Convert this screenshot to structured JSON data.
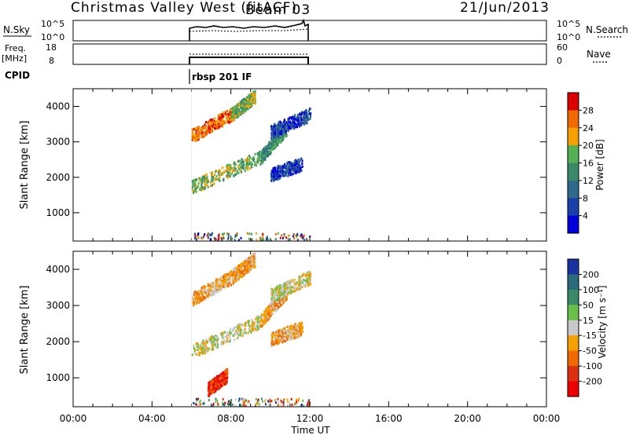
{
  "header": {
    "title": "Christmas Valley West (fitACF)",
    "beam": "Beam 03",
    "date": "21/Jun/2013"
  },
  "top_panels": {
    "nsky": {
      "label": "N.Sky",
      "ticks_left": [
        "10^5",
        "10^0"
      ],
      "ticks_right": [
        "10^5",
        "10^0"
      ],
      "right_label": "N.Search"
    },
    "freq": {
      "label_line1": "Freq.",
      "label_line2": "[MHz]",
      "ticks_left": [
        "18",
        "8"
      ],
      "ticks_right": [
        "60",
        "0"
      ],
      "right_label": "Nave"
    },
    "cpid": {
      "label": "CPID",
      "value": "rbsp 201 IF"
    }
  },
  "chart_data": [
    {
      "type": "heatmap",
      "name": "power",
      "ylabel": "Slant Range [km]",
      "ylim": [
        200,
        4500
      ],
      "yticks": [
        1000,
        2000,
        3000,
        4000
      ],
      "xlim_hours": [
        0,
        24
      ],
      "data_window_hours": [
        6.0,
        12.0
      ],
      "colorbar": {
        "label": "Power [dB]",
        "ticks": [
          "28",
          "24",
          "20",
          "16",
          "12",
          "8",
          "4"
        ],
        "colors": [
          "#0000dd",
          "#1a3fa8",
          "#2e6a8a",
          "#3a8a6a",
          "#55b055",
          "#f5a000",
          "#f06a00",
          "#dd0000"
        ]
      },
      "bands": [
        {
          "x0": 6.0,
          "y0": 3200,
          "x1": 8.0,
          "y1": 3800,
          "level": 6
        },
        {
          "x0": 8.0,
          "y0": 3800,
          "x1": 9.2,
          "y1": 4300,
          "level": 4
        },
        {
          "x0": 6.0,
          "y0": 1750,
          "x1": 9.5,
          "y1": 2600,
          "level": 4
        },
        {
          "x0": 9.5,
          "y0": 2600,
          "x1": 10.8,
          "y1": 3400,
          "level": 3
        },
        {
          "x0": 10.0,
          "y0": 3300,
          "x1": 12.0,
          "y1": 3800,
          "level": 1
        },
        {
          "x0": 10.0,
          "y0": 2100,
          "x1": 11.6,
          "y1": 2400,
          "level": 1
        }
      ]
    },
    {
      "type": "heatmap",
      "name": "velocity",
      "ylabel": "Slant Range [km]",
      "ylim": [
        200,
        4500
      ],
      "yticks": [
        1000,
        2000,
        3000,
        4000
      ],
      "xlim_hours": [
        0,
        24
      ],
      "data_window_hours": [
        6.0,
        12.0
      ],
      "colorbar": {
        "label": "Velocity [m s⁻¹]",
        "ticks": [
          "200",
          "100",
          "50",
          "15",
          "-15",
          "-50",
          "-100",
          "-200"
        ],
        "colors": [
          "#1a33a0",
          "#2a6a7a",
          "#3a8a6a",
          "#6abf4a",
          "#c8c8c8",
          "#f5a000",
          "#f06a00",
          "#dd3010",
          "#ee0000"
        ]
      },
      "bands": [
        {
          "x0": 6.0,
          "y0": 3200,
          "x1": 8.0,
          "y1": 3800,
          "level": 5
        },
        {
          "x0": 8.0,
          "y0": 3800,
          "x1": 9.2,
          "y1": 4300,
          "level": 5
        },
        {
          "x0": 6.0,
          "y0": 1750,
          "x1": 9.5,
          "y1": 2600,
          "level": 4
        },
        {
          "x0": 9.5,
          "y0": 2600,
          "x1": 10.8,
          "y1": 3400,
          "level": 5
        },
        {
          "x0": 10.0,
          "y0": 3300,
          "x1": 12.0,
          "y1": 3800,
          "level": 4
        },
        {
          "x0": 10.0,
          "y0": 2100,
          "x1": 11.6,
          "y1": 2400,
          "level": 5
        },
        {
          "x0": 6.8,
          "y0": 700,
          "x1": 7.8,
          "y1": 1100,
          "level": 7
        }
      ]
    }
  ],
  "xaxis": {
    "label": "Time UT",
    "ticks": [
      "00:00",
      "04:00",
      "08:00",
      "12:00",
      "16:00",
      "20:00",
      "00:00"
    ]
  }
}
